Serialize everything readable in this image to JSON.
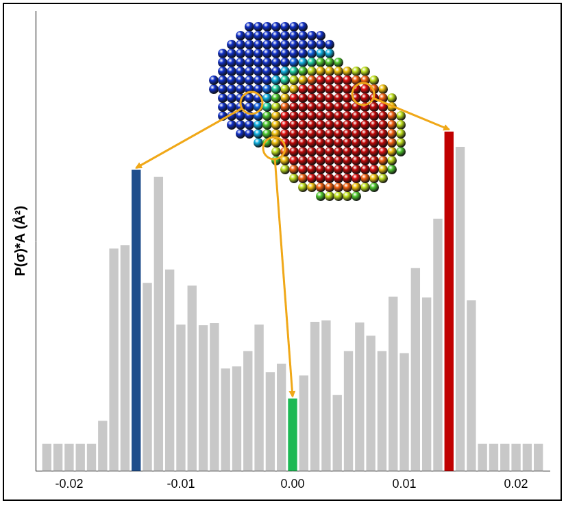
{
  "chart_data": {
    "type": "histogram",
    "y_label": "P(σ)*A (Å²)",
    "bins": [
      -0.0225,
      -0.0215,
      -0.0205,
      -0.0195,
      -0.0185,
      -0.0175,
      -0.0165,
      -0.0155,
      -0.0145,
      -0.0135,
      -0.0125,
      -0.0115,
      -0.0105,
      -0.0095,
      -0.0085,
      -0.0075,
      -0.0065,
      -0.0055,
      -0.0045,
      -0.0035,
      -0.0025,
      -0.0015,
      -0.0005,
      0.0005,
      0.0015,
      0.0025,
      0.0035,
      0.0045,
      0.0055,
      0.0065,
      0.0075,
      0.0085,
      0.0095,
      0.0105,
      0.0115,
      0.0125,
      0.0135,
      0.0145,
      0.0155,
      0.0165,
      0.0175,
      0.0185,
      0.0195,
      0.0205,
      0.0215,
      0.0225
    ],
    "values": [
      3.9,
      3.9,
      3.9,
      3.9,
      3.9,
      7.2,
      31.9,
      32.4,
      43.2,
      27.0,
      42.2,
      28.9,
      21.0,
      26.6,
      20.9,
      21.2,
      14.7,
      15.0,
      17.2,
      21.0,
      14.2,
      15.4,
      10.4,
      13.7,
      21.4,
      21.6,
      10.9,
      17.2,
      21.3,
      19.4,
      17.2,
      25.0,
      16.9,
      29.1,
      24.9,
      36.2,
      48.7,
      46.5,
      24.5,
      3.9,
      3.9,
      3.9,
      3.9,
      3.9,
      3.9
    ],
    "colors": [
      "#c8c8c8",
      "#c8c8c8",
      "#c8c8c8",
      "#c8c8c8",
      "#c8c8c8",
      "#c8c8c8",
      "#c8c8c8",
      "#c8c8c8",
      "#1f4e8c",
      "#c8c8c8",
      "#c8c8c8",
      "#c8c8c8",
      "#c8c8c8",
      "#c8c8c8",
      "#c8c8c8",
      "#c8c8c8",
      "#c8c8c8",
      "#c8c8c8",
      "#c8c8c8",
      "#c8c8c8",
      "#c8c8c8",
      "#c8c8c8",
      "#1db954",
      "#c8c8c8",
      "#c8c8c8",
      "#c8c8c8",
      "#c8c8c8",
      "#c8c8c8",
      "#c8c8c8",
      "#c8c8c8",
      "#c8c8c8",
      "#c8c8c8",
      "#c8c8c8",
      "#c8c8c8",
      "#c8c8c8",
      "#c8c8c8",
      "#c00000",
      "#c8c8c8",
      "#c8c8c8",
      "#c8c8c8",
      "#c8c8c8",
      "#c8c8c8",
      "#c8c8c8",
      "#c8c8c8",
      "#c8c8c8"
    ],
    "xlim": [
      -0.023,
      0.023
    ],
    "xticks": [
      -0.02,
      -0.01,
      {
        "value": 0,
        "label": "0.00"
      },
      0.01,
      0.02
    ],
    "ylim": [
      0,
      66
    ],
    "tick_labels": "x",
    "grid": false
  }
}
